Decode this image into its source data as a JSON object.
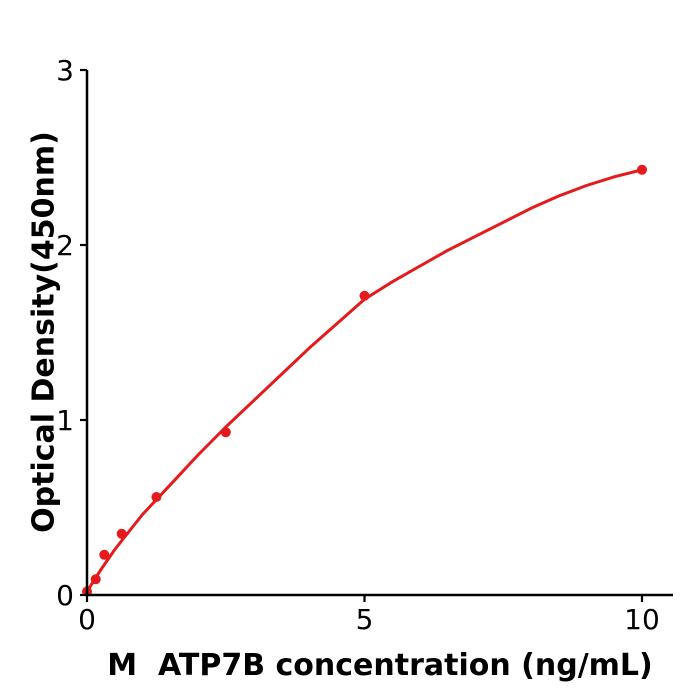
{
  "figure": {
    "background": "#ffffff",
    "axis_color": "#000000",
    "text_color": "#000000"
  },
  "chart_data": {
    "type": "scatter",
    "title": "",
    "xlabel": "M  ATP7B concentration (ng/mL)",
    "ylabel": "Optical Density(450nm)",
    "xlim": [
      0,
      10.55
    ],
    "ylim": [
      0,
      3
    ],
    "grid": false,
    "legend": null,
    "x_ticks": [
      "0",
      "5",
      "10"
    ],
    "x_tick_values": [
      0,
      5,
      10
    ],
    "y_ticks": [
      "0",
      "1",
      "2",
      "3"
    ],
    "y_tick_values": [
      0,
      1,
      2,
      3
    ],
    "series": [
      {
        "name": "fit-curve",
        "type": "line",
        "color": "#e41a1c",
        "line_width": 3,
        "points": [
          [
            0,
            0.02
          ],
          [
            0.25,
            0.145
          ],
          [
            0.5,
            0.26
          ],
          [
            0.75,
            0.36
          ],
          [
            1,
            0.46
          ],
          [
            1.5,
            0.63
          ],
          [
            2,
            0.8
          ],
          [
            2.5,
            0.96
          ],
          [
            3,
            1.11
          ],
          [
            3.5,
            1.26
          ],
          [
            4,
            1.41
          ],
          [
            4.5,
            1.55
          ],
          [
            5,
            1.69
          ],
          [
            5.5,
            1.79
          ],
          [
            6,
            1.88
          ],
          [
            6.5,
            1.97
          ],
          [
            7,
            2.05
          ],
          [
            7.5,
            2.13
          ],
          [
            8,
            2.21
          ],
          [
            8.5,
            2.28
          ],
          [
            9,
            2.34
          ],
          [
            9.5,
            2.39
          ],
          [
            10,
            2.43
          ]
        ]
      },
      {
        "name": "standard-points",
        "type": "scatter",
        "color": "#e41a1c",
        "marker_radius": 5,
        "points": [
          [
            0,
            0.02
          ],
          [
            0.156,
            0.09
          ],
          [
            0.3125,
            0.23
          ],
          [
            0.625,
            0.35
          ],
          [
            1.25,
            0.56
          ],
          [
            2.5,
            0.93
          ],
          [
            5,
            1.71
          ],
          [
            10,
            2.43
          ]
        ]
      }
    ]
  }
}
